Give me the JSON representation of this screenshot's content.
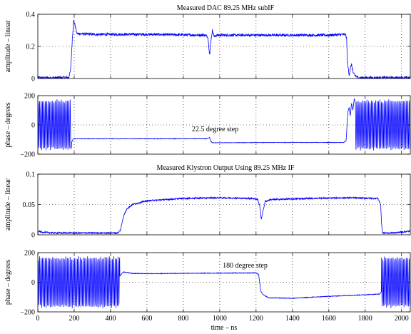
{
  "chart_data": [
    {
      "type": "line",
      "title": "Measured DAC 89.25 MHz subIF",
      "ylabel": "amplitude – linear",
      "xlabel": "",
      "xlim": [
        0,
        2048
      ],
      "ylim": [
        0,
        0.4
      ],
      "xticks": [
        0,
        200,
        400,
        600,
        800,
        1000,
        1200,
        1400,
        1600,
        1800,
        2000
      ],
      "xtick_labels": [],
      "yticks": [
        0,
        0.2,
        0.4
      ],
      "ytick_labels": [
        "0",
        "0.2",
        "0.4"
      ],
      "grid": true,
      "annotations": [],
      "series": [
        {
          "color": "#0000ff",
          "points": [
            [
              0,
              0.005
            ],
            [
              100,
              0.005
            ],
            [
              170,
              0.007
            ],
            [
              180,
              0.05
            ],
            [
              190,
              0.25
            ],
            [
              197,
              0.36
            ],
            [
              205,
              0.33
            ],
            [
              215,
              0.28
            ],
            [
              300,
              0.275
            ],
            [
              600,
              0.275
            ],
            [
              920,
              0.27
            ],
            [
              935,
              0.26
            ],
            [
              945,
              0.145
            ],
            [
              952,
              0.24
            ],
            [
              960,
              0.3
            ],
            [
              970,
              0.26
            ],
            [
              985,
              0.27
            ],
            [
              1300,
              0.27
            ],
            [
              1600,
              0.27
            ],
            [
              1690,
              0.275
            ],
            [
              1698,
              0.25
            ],
            [
              1702,
              0.11
            ],
            [
              1712,
              0.02
            ],
            [
              1718,
              0.06
            ],
            [
              1725,
              0.09
            ],
            [
              1735,
              0.03
            ],
            [
              1760,
              0.005
            ],
            [
              2048,
              0.005
            ]
          ],
          "noise": 0.008
        }
      ]
    },
    {
      "type": "line",
      "title": "",
      "ylabel": "phase – degrees",
      "xlabel": "",
      "xlim": [
        0,
        2048
      ],
      "ylim": [
        -200,
        200
      ],
      "xticks": [
        0,
        200,
        400,
        600,
        800,
        1000,
        1200,
        1400,
        1600,
        1800,
        2000
      ],
      "xtick_labels": [],
      "yticks": [
        -200,
        0,
        200
      ],
      "ytick_labels": [
        "−200",
        "0",
        "200"
      ],
      "grid": true,
      "annotations": [
        {
          "text": "22.5 degree step",
          "x": 975,
          "y": -45
        }
      ],
      "series": [
        {
          "color": "#0000ff",
          "oscillation": {
            "ranges": [
              [
                0,
                183
              ],
              [
                1745,
                2048
              ]
            ],
            "amplitude": 175,
            "period": 8
          },
          "points": [
            [
              183,
              -170
            ],
            [
              186,
              -120
            ],
            [
              195,
              -95
            ],
            [
              600,
              -95
            ],
            [
              930,
              -95
            ],
            [
              945,
              -85
            ],
            [
              950,
              -110
            ],
            [
              960,
              -122
            ],
            [
              1300,
              -120
            ],
            [
              1680,
              -120
            ],
            [
              1695,
              -110
            ],
            [
              1705,
              90
            ],
            [
              1712,
              120
            ],
            [
              1718,
              60
            ],
            [
              1725,
              150
            ],
            [
              1732,
              100
            ],
            [
              1740,
              180
            ],
            [
              1745,
              160
            ]
          ],
          "noise": 1.5
        }
      ]
    },
    {
      "type": "line",
      "title": "Measured Klystron Output Using 89.25 MHz IF",
      "ylabel": "amplitude – linear",
      "xlabel": "",
      "xlim": [
        0,
        2048
      ],
      "ylim": [
        0,
        0.1
      ],
      "xticks": [
        0,
        200,
        400,
        600,
        800,
        1000,
        1200,
        1400,
        1600,
        1800,
        2000
      ],
      "xtick_labels": [],
      "yticks": [
        0,
        0.05,
        0.1
      ],
      "ytick_labels": [
        "0",
        "0.05",
        "0.1"
      ],
      "grid": true,
      "annotations": [],
      "series": [
        {
          "color": "#0000ff",
          "points": [
            [
              0,
              0.006
            ],
            [
              30,
              0.004
            ],
            [
              100,
              0.003
            ],
            [
              300,
              0.003
            ],
            [
              440,
              0.003
            ],
            [
              455,
              0.008
            ],
            [
              470,
              0.03
            ],
            [
              490,
              0.043
            ],
            [
              520,
              0.05
            ],
            [
              600,
              0.056
            ],
            [
              800,
              0.06
            ],
            [
              1000,
              0.061
            ],
            [
              1180,
              0.06
            ],
            [
              1210,
              0.058
            ],
            [
              1222,
              0.045
            ],
            [
              1228,
              0.025
            ],
            [
              1235,
              0.035
            ],
            [
              1250,
              0.055
            ],
            [
              1280,
              0.058
            ],
            [
              1500,
              0.06
            ],
            [
              1700,
              0.061
            ],
            [
              1870,
              0.06
            ],
            [
              1885,
              0.05
            ],
            [
              1890,
              0.02
            ],
            [
              1895,
              0.003
            ],
            [
              1950,
              0.003
            ],
            [
              2048,
              0.006
            ]
          ],
          "noise": 0.0012
        }
      ]
    },
    {
      "type": "line",
      "title": "",
      "ylabel": "phase – degrees",
      "xlabel": "time – ns",
      "xlim": [
        0,
        2048
      ],
      "ylim": [
        -200,
        200
      ],
      "xticks": [
        0,
        200,
        400,
        600,
        800,
        1000,
        1200,
        1400,
        1600,
        1800,
        2000
      ],
      "xtick_labels": [
        "0",
        "200",
        "400",
        "600",
        "800",
        "1000",
        "1200",
        "1400",
        "1600",
        "1800",
        "2000"
      ],
      "yticks": [
        -200,
        0,
        200
      ],
      "ytick_labels": [
        "−200",
        "0",
        "200"
      ],
      "grid": true,
      "annotations": [
        {
          "text": "180 degree step",
          "x": 1140,
          "y": 100
        }
      ],
      "series": [
        {
          "color": "#0000ff",
          "oscillation": {
            "ranges": [
              [
                0,
                450
              ],
              [
                1890,
                2048
              ]
            ],
            "amplitude": 175,
            "period": 8
          },
          "points": [
            [
              450,
              40
            ],
            [
              470,
              70
            ],
            [
              520,
              60
            ],
            [
              600,
              58
            ],
            [
              800,
              60
            ],
            [
              1000,
              62
            ],
            [
              1200,
              63
            ],
            [
              1215,
              50
            ],
            [
              1225,
              -60
            ],
            [
              1240,
              -85
            ],
            [
              1270,
              -105
            ],
            [
              1400,
              -108
            ],
            [
              1600,
              -95
            ],
            [
              1880,
              -80
            ],
            [
              1890,
              -60
            ]
          ],
          "noise": 2
        }
      ]
    }
  ]
}
